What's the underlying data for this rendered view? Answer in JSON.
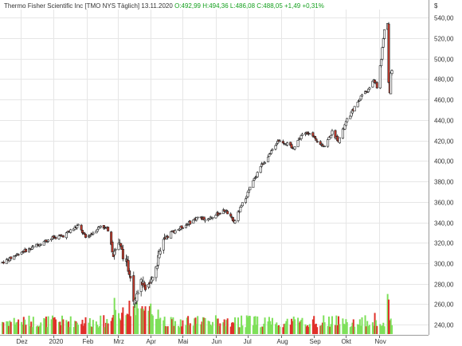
{
  "header": {
    "name": "Thermo Fisher Scientific Inc",
    "ticker": "[TMO NYS  Täglich]",
    "date": "13.11.2020",
    "open_label": "O:",
    "open": "492,99",
    "high_label": "H:",
    "high": "494,36",
    "low_label": "L:",
    "low": "486,08",
    "close_label": "C:",
    "close": "488,05",
    "change": "+1,49",
    "change_pct": "+0,31%"
  },
  "colors": {
    "up_candle": "#ffffff",
    "down_candle": "#c0392b",
    "volume_up": "#7ee05a",
    "volume_down": "#e0302a",
    "grid": "#e6e6e6",
    "watermark": "#b8b8b8"
  },
  "watermark": "",
  "chart_data": {
    "type": "candlestick",
    "currency_label": "$",
    "ylim": [
      230,
      548
    ],
    "yticks": [
      240,
      260,
      280,
      300,
      320,
      340,
      360,
      380,
      400,
      420,
      440,
      460,
      480,
      500,
      520,
      540
    ],
    "ytick_labels": [
      "240,00",
      "260,00",
      "280,00",
      "300,00",
      "320,00",
      "340,00",
      "360,00",
      "380,00",
      "400,00",
      "420,00",
      "440,00",
      "460,00",
      "480,00",
      "500,00",
      "520,00",
      "540,00"
    ],
    "xticks": [
      "Dez",
      "2020",
      "Feb",
      "Mrz",
      "Apr",
      "Mai",
      "Jun",
      "Jul",
      "Aug",
      "Sep",
      "Okt",
      "Nov"
    ],
    "xtick_dates": [
      "2019-12-01",
      "2020-01-01",
      "2020-02-01",
      "2020-03-01",
      "2020-04-01",
      "2020-05-01",
      "2020-06-01",
      "2020-07-01",
      "2020-08-01",
      "2020-09-01",
      "2020-10-01",
      "2020-11-01"
    ],
    "x_range": [
      "2019-11-14",
      "2020-11-13"
    ],
    "grid": true,
    "price_path": [
      [
        "2019-11-14",
        301
      ],
      [
        "2019-11-22",
        305
      ],
      [
        "2019-12-01",
        311
      ],
      [
        "2019-12-10",
        314
      ],
      [
        "2019-12-20",
        320
      ],
      [
        "2020-01-01",
        325
      ],
      [
        "2020-01-10",
        327
      ],
      [
        "2020-01-17",
        332
      ],
      [
        "2020-01-24",
        337
      ],
      [
        "2020-01-31",
        325
      ],
      [
        "2020-02-07",
        330
      ],
      [
        "2020-02-14",
        337
      ],
      [
        "2020-02-21",
        333
      ],
      [
        "2020-02-26",
        310
      ],
      [
        "2020-03-02",
        320
      ],
      [
        "2020-03-09",
        300
      ],
      [
        "2020-03-13",
        290
      ],
      [
        "2020-03-16",
        265
      ],
      [
        "2020-03-20",
        275
      ],
      [
        "2020-03-24",
        282
      ],
      [
        "2020-03-27",
        270
      ],
      [
        "2020-04-01",
        282
      ],
      [
        "2020-04-06",
        298
      ],
      [
        "2020-04-13",
        320
      ],
      [
        "2020-04-20",
        330
      ],
      [
        "2020-04-30",
        335
      ],
      [
        "2020-05-08",
        340
      ],
      [
        "2020-05-15",
        345
      ],
      [
        "2020-05-22",
        343
      ],
      [
        "2020-06-01",
        347
      ],
      [
        "2020-06-10",
        352
      ],
      [
        "2020-06-18",
        340
      ],
      [
        "2020-06-26",
        358
      ],
      [
        "2020-07-06",
        380
      ],
      [
        "2020-07-13",
        395
      ],
      [
        "2020-07-21",
        405
      ],
      [
        "2020-07-29",
        420
      ],
      [
        "2020-08-05",
        418
      ],
      [
        "2020-08-12",
        412
      ],
      [
        "2020-08-20",
        425
      ],
      [
        "2020-08-28",
        428
      ],
      [
        "2020-09-04",
        418
      ],
      [
        "2020-09-11",
        415
      ],
      [
        "2020-09-18",
        428
      ],
      [
        "2020-09-24",
        420
      ],
      [
        "2020-10-02",
        440
      ],
      [
        "2020-10-09",
        452
      ],
      [
        "2020-10-16",
        465
      ],
      [
        "2020-10-23",
        470
      ],
      [
        "2020-10-27",
        480
      ],
      [
        "2020-10-30",
        472
      ],
      [
        "2020-11-03",
        500
      ],
      [
        "2020-11-06",
        528
      ],
      [
        "2020-11-09",
        535
      ],
      [
        "2020-11-10",
        478
      ],
      [
        "2020-11-11",
        468
      ],
      [
        "2020-11-12",
        486
      ],
      [
        "2020-11-13",
        488
      ]
    ],
    "volume_spikes": [
      [
        "2020-02-27",
        0.65
      ],
      [
        "2020-03-12",
        0.6
      ],
      [
        "2020-03-17",
        0.66
      ],
      [
        "2020-03-19",
        0.58
      ],
      [
        "2020-03-24",
        0.5
      ],
      [
        "2020-03-26",
        0.42
      ],
      [
        "2020-03-30",
        0.35
      ],
      [
        "2020-11-09",
        0.72
      ],
      [
        "2020-11-10",
        0.62
      ],
      [
        "2020-10-28",
        0.38
      ]
    ],
    "last_close": 488.05
  }
}
